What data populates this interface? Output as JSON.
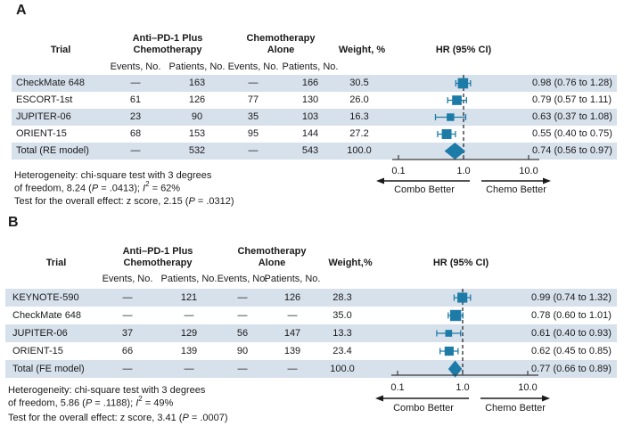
{
  "colors": {
    "marker": "#1d7ba7",
    "stripe": "#d7e1ec",
    "axis": "#3a3a3a",
    "text": "#1a1a1a"
  },
  "panels": [
    {
      "label": "A",
      "header": {
        "trial": "Trial",
        "group1_line1": "Anti–PD-1 Plus",
        "group1_line2": "Chemotherapy",
        "group2_line1": "Chemotherapy",
        "group2_line2": "Alone",
        "sub_labels": [
          "Events, No.",
          "Patients, No.",
          "Events, No.",
          "Patients, No."
        ],
        "weight": "Weight, %",
        "hr": "HR (95% CI)"
      },
      "rows": [
        {
          "trial": "CheckMate 648",
          "cells": [
            "—",
            "163",
            "—",
            "166"
          ],
          "weight": "30.5",
          "hr_label": "0.98 (0.76 to 1.28)",
          "striped": true
        },
        {
          "trial": "ESCORT-1st",
          "cells": [
            "61",
            "126",
            "77",
            "130"
          ],
          "weight": "26.0",
          "hr_label": "0.79 (0.57 to 1.11)",
          "striped": false
        },
        {
          "trial": "JUPITER-06",
          "cells": [
            "23",
            "90",
            "35",
            "103"
          ],
          "weight": "16.3",
          "hr_label": "0.63 (0.37 to 1.08)",
          "striped": true
        },
        {
          "trial": "ORIENT-15",
          "cells": [
            "68",
            "153",
            "95",
            "144"
          ],
          "weight": "27.2",
          "hr_label": "0.55 (0.40 to 0.75)",
          "striped": false
        },
        {
          "trial": "Total (RE model)",
          "cells": [
            "—",
            "532",
            "—",
            "543"
          ],
          "weight": "100.0",
          "hr_label": "0.74 (0.56 to 0.97)",
          "striped": true
        }
      ],
      "footnotes": {
        "het_line1": "Heterogeneity: chi-square test with 3 degrees",
        "het_line2_pre": "of freedom, 8.24 (",
        "het_line2_p": "P",
        "het_line2_mid": " = .0413); ",
        "het_line2_i": "I",
        "het_line2_sup": "2",
        "het_line2_post": " = 62%",
        "test_pre": "Test for the overall effect: z score, 2.15 (",
        "test_p": "P",
        "test_post": " = .0312)"
      }
    },
    {
      "label": "B",
      "header": {
        "trial": "Trial",
        "group1_line1": "Anti–PD-1 Plus",
        "group1_line2": "Chemotherapy",
        "group2_line1": "Chemotherapy",
        "group2_line2": "Alone",
        "sub_labels": [
          "Events, No.",
          "Patients, No.",
          "Events, No.",
          "Patients, No."
        ],
        "weight": "Weight,%",
        "hr": "HR (95% CI)"
      },
      "rows": [
        {
          "trial": "KEYNOTE-590",
          "cells": [
            "—",
            "121",
            "—",
            "126"
          ],
          "weight": "28.3",
          "hr_label": "0.99 (0.74 to 1.32)",
          "striped": true
        },
        {
          "trial": "CheckMate 648",
          "cells": [
            "—",
            "—",
            "—",
            "—"
          ],
          "weight": "35.0",
          "hr_label": "0.78 (0.60 to 1.01)",
          "striped": false
        },
        {
          "trial": "JUPITER-06",
          "cells": [
            "37",
            "129",
            "56",
            "147"
          ],
          "weight": "13.3",
          "hr_label": "0.61 (0.40 to 0.93)",
          "striped": true
        },
        {
          "trial": "ORIENT-15",
          "cells": [
            "66",
            "139",
            "90",
            "139"
          ],
          "weight": "23.4",
          "hr_label": "0.62 (0.45 to 0.85)",
          "striped": false
        },
        {
          "trial": "Total (FE model)",
          "cells": [
            "—",
            "—",
            "—",
            "—"
          ],
          "weight": "100.0",
          "hr_label": "0.77 (0.66 to 0.89)",
          "striped": true
        }
      ],
      "footnotes": {
        "het_line1": "Heterogeneity: chi-square test with 3 degrees",
        "het_line2_pre": "of freedom, 5.86 (",
        "het_line2_p": "P",
        "het_line2_mid": " = .1188); ",
        "het_line2_i": "I",
        "het_line2_sup": "2",
        "het_line2_post": " = 49%",
        "test_pre": "Test for the overall effect: z score, 3.41 (",
        "test_p": "P",
        "test_post": " = .0007)"
      }
    }
  ],
  "chart_data": [
    {
      "type": "scatter",
      "subtype": "forest-plot",
      "panel": "A",
      "x_scale": "log",
      "xlim": [
        0.1,
        10.0
      ],
      "x_ticks": [
        0.1,
        1.0,
        10.0
      ],
      "x_tick_labels": [
        "0.1",
        "1.0",
        "10.0"
      ],
      "reference_line": 1.0,
      "direction_left": "Combo Better",
      "direction_right": "Chemo Better",
      "categories": [
        "CheckMate 648",
        "ESCORT-1st",
        "JUPITER-06",
        "ORIENT-15",
        "Total (RE model)"
      ],
      "hr": [
        0.98,
        0.79,
        0.63,
        0.55,
        0.74
      ],
      "ci_low": [
        0.76,
        0.57,
        0.37,
        0.4,
        0.56
      ],
      "ci_high": [
        1.28,
        1.11,
        1.08,
        0.75,
        0.97
      ],
      "weight_pct": [
        30.5,
        26.0,
        16.3,
        27.2,
        100.0
      ],
      "pooled_index": 4,
      "pooled_model": "RE"
    },
    {
      "type": "scatter",
      "subtype": "forest-plot",
      "panel": "B",
      "x_scale": "log",
      "xlim": [
        0.1,
        10.0
      ],
      "x_ticks": [
        0.1,
        1.0,
        10.0
      ],
      "x_tick_labels": [
        "0.1",
        "1.0",
        "10.0"
      ],
      "reference_line": 1.0,
      "direction_left": "Combo Better",
      "direction_right": "Chemo Better",
      "categories": [
        "KEYNOTE-590",
        "CheckMate 648",
        "JUPITER-06",
        "ORIENT-15",
        "Total (FE model)"
      ],
      "hr": [
        0.99,
        0.78,
        0.61,
        0.62,
        0.77
      ],
      "ci_low": [
        0.74,
        0.6,
        0.4,
        0.45,
        0.66
      ],
      "ci_high": [
        1.32,
        1.01,
        0.93,
        0.85,
        0.89
      ],
      "weight_pct": [
        28.3,
        35.0,
        13.3,
        23.4,
        100.0
      ],
      "pooled_index": 4,
      "pooled_model": "FE"
    }
  ]
}
